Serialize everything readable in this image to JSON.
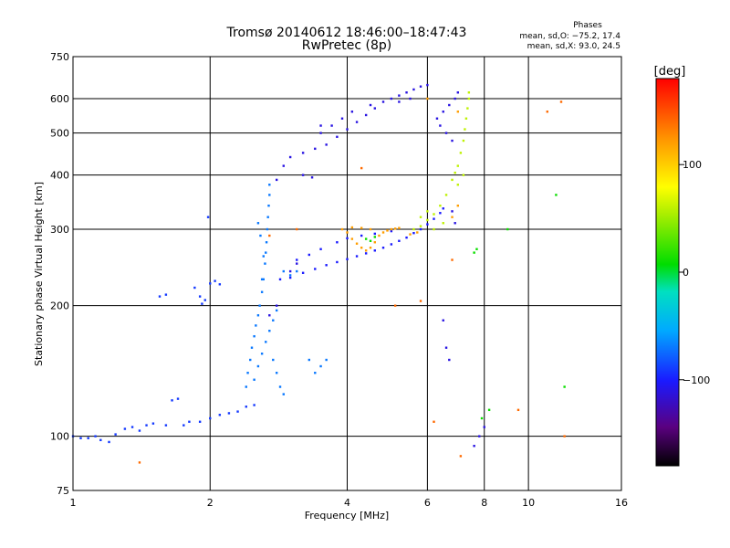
{
  "chart_data": {
    "type": "scatter",
    "title": "Tromsø 20140612 18:46:00–18:47:43",
    "subtitle": "RwPretec (8p)",
    "xlabel": "Frequency [MHz]",
    "ylabel": "Stationary phase Virtual Height [km]",
    "x_scale": "log",
    "y_scale": "log",
    "xlim": [
      1,
      16
    ],
    "ylim": [
      75,
      750
    ],
    "x_ticks": [
      1,
      2,
      4,
      6,
      8,
      10,
      16
    ],
    "x_tick_labels": [
      "1",
      "2",
      "4",
      "6",
      "8",
      "10",
      "16"
    ],
    "y_ticks": [
      75,
      100,
      200,
      300,
      400,
      500,
      600,
      750
    ],
    "y_tick_labels": [
      "75",
      "100",
      "200",
      "300",
      "400",
      "500",
      "600",
      "750"
    ],
    "grid": true,
    "phases_box": {
      "title": "Phases",
      "line1": "mean, sd,O: −75.2, 17.4",
      "line2": "mean, sd,X:  93.0, 24.5"
    },
    "colorbar": {
      "label": "[deg]",
      "range": [
        -180,
        180
      ],
      "ticks": [
        100,
        0,
        -100
      ],
      "tick_labels": [
        "100",
        "0",
        "−100"
      ]
    },
    "series": [
      {
        "color_value": -90,
        "points": [
          [
            1.0,
            100
          ],
          [
            1.04,
            99
          ],
          [
            1.08,
            99
          ],
          [
            1.12,
            100
          ],
          [
            1.15,
            98
          ],
          [
            1.2,
            97
          ],
          [
            1.24,
            101
          ],
          [
            1.3,
            104
          ],
          [
            1.35,
            105
          ],
          [
            1.4,
            103
          ],
          [
            1.45,
            106
          ],
          [
            1.5,
            107
          ],
          [
            1.6,
            106
          ],
          [
            1.65,
            121
          ],
          [
            1.7,
            122
          ],
          [
            1.75,
            106
          ],
          [
            1.8,
            108
          ],
          [
            1.9,
            108
          ],
          [
            2.0,
            110
          ],
          [
            2.1,
            112
          ],
          [
            2.2,
            113
          ],
          [
            2.3,
            114
          ],
          [
            2.4,
            117
          ],
          [
            2.5,
            118
          ],
          [
            1.55,
            210
          ],
          [
            1.6,
            212
          ],
          [
            1.85,
            220
          ],
          [
            1.9,
            210
          ],
          [
            1.92,
            202
          ],
          [
            2.0,
            225
          ],
          [
            2.05,
            228
          ],
          [
            2.1,
            224
          ],
          [
            1.95,
            206
          ],
          [
            1.98,
            320
          ]
        ]
      },
      {
        "color_value": -70,
        "points": [
          [
            2.4,
            130
          ],
          [
            2.42,
            140
          ],
          [
            2.45,
            150
          ],
          [
            2.47,
            160
          ],
          [
            2.5,
            170
          ],
          [
            2.52,
            180
          ],
          [
            2.55,
            190
          ],
          [
            2.57,
            200
          ],
          [
            2.6,
            215
          ],
          [
            2.62,
            230
          ],
          [
            2.64,
            250
          ],
          [
            2.65,
            265
          ],
          [
            2.66,
            280
          ],
          [
            2.67,
            300
          ],
          [
            2.68,
            320
          ],
          [
            2.69,
            340
          ],
          [
            2.7,
            360
          ],
          [
            2.7,
            380
          ],
          [
            2.5,
            135
          ],
          [
            2.55,
            145
          ],
          [
            2.6,
            155
          ],
          [
            2.65,
            165
          ],
          [
            2.7,
            175
          ],
          [
            2.75,
            185
          ],
          [
            2.8,
            195
          ],
          [
            2.75,
            150
          ],
          [
            2.8,
            140
          ],
          [
            2.85,
            130
          ],
          [
            2.9,
            125
          ],
          [
            2.6,
            230
          ],
          [
            2.62,
            260
          ],
          [
            2.58,
            290
          ],
          [
            2.55,
            310
          ],
          [
            2.9,
            240
          ],
          [
            3.0,
            235
          ],
          [
            3.1,
            240
          ],
          [
            3.3,
            150
          ],
          [
            3.4,
            140
          ],
          [
            3.5,
            145
          ],
          [
            3.6,
            150
          ]
        ]
      },
      {
        "color_value": -100,
        "points": [
          [
            2.85,
            230
          ],
          [
            3.0,
            232
          ],
          [
            3.2,
            238
          ],
          [
            3.4,
            243
          ],
          [
            3.6,
            248
          ],
          [
            3.8,
            252
          ],
          [
            4.0,
            256
          ],
          [
            4.2,
            260
          ],
          [
            4.4,
            264
          ],
          [
            4.6,
            268
          ],
          [
            4.8,
            272
          ],
          [
            5.0,
            277
          ],
          [
            5.2,
            282
          ],
          [
            5.4,
            287
          ],
          [
            5.6,
            294
          ],
          [
            5.8,
            300
          ],
          [
            6.0,
            308
          ],
          [
            6.2,
            317
          ],
          [
            6.4,
            327
          ],
          [
            6.5,
            335
          ],
          [
            3.1,
            255
          ],
          [
            3.3,
            262
          ],
          [
            3.5,
            270
          ],
          [
            3.8,
            280
          ],
          [
            4.0,
            286
          ],
          [
            4.3,
            290
          ],
          [
            4.6,
            293
          ],
          [
            5.0,
            297
          ]
        ]
      },
      {
        "color_value": -110,
        "points": [
          [
            2.7,
            190
          ],
          [
            2.8,
            200
          ],
          [
            3.0,
            240
          ],
          [
            3.1,
            250
          ],
          [
            2.8,
            390
          ],
          [
            2.9,
            420
          ],
          [
            3.0,
            440
          ],
          [
            3.2,
            450
          ],
          [
            3.4,
            460
          ],
          [
            3.6,
            470
          ],
          [
            3.8,
            490
          ],
          [
            4.0,
            510
          ],
          [
            4.2,
            530
          ],
          [
            4.4,
            550
          ],
          [
            4.6,
            570
          ],
          [
            4.8,
            590
          ],
          [
            5.0,
            600
          ],
          [
            5.2,
            610
          ],
          [
            5.4,
            620
          ],
          [
            5.6,
            630
          ],
          [
            5.8,
            640
          ],
          [
            6.0,
            645
          ],
          [
            3.5,
            500
          ],
          [
            3.7,
            520
          ],
          [
            3.9,
            540
          ],
          [
            4.1,
            560
          ],
          [
            4.5,
            580
          ],
          [
            5.2,
            590
          ],
          [
            5.5,
            600
          ],
          [
            3.5,
            520
          ],
          [
            3.2,
            400
          ],
          [
            3.35,
            395
          ],
          [
            6.3,
            540
          ],
          [
            6.4,
            520
          ],
          [
            6.6,
            500
          ],
          [
            6.8,
            480
          ],
          [
            6.5,
            560
          ],
          [
            6.7,
            580
          ],
          [
            6.9,
            600
          ],
          [
            7.0,
            620
          ],
          [
            6.8,
            330
          ],
          [
            6.9,
            310
          ],
          [
            6.5,
            185
          ],
          [
            6.6,
            160
          ],
          [
            6.7,
            150
          ],
          [
            7.6,
            95
          ],
          [
            7.8,
            100
          ],
          [
            8.0,
            105
          ]
        ]
      },
      {
        "color_value": 120,
        "points": [
          [
            3.9,
            300
          ],
          [
            4.0,
            295
          ],
          [
            4.1,
            285
          ],
          [
            4.2,
            278
          ],
          [
            4.3,
            272
          ],
          [
            4.4,
            268
          ],
          [
            4.5,
            272
          ],
          [
            4.6,
            280
          ],
          [
            4.7,
            290
          ],
          [
            4.8,
            295
          ],
          [
            4.9,
            298
          ],
          [
            5.0,
            300
          ],
          [
            5.1,
            301
          ],
          [
            5.2,
            302
          ],
          [
            4.5,
            300
          ],
          [
            4.3,
            302
          ],
          [
            4.1,
            303
          ],
          [
            5.7,
            295
          ],
          [
            5.5,
            292
          ],
          [
            6.0,
            600
          ],
          [
            6.8,
            320
          ],
          [
            7.0,
            340
          ],
          [
            7.0,
            560
          ]
        ]
      },
      {
        "color_value": 60,
        "points": [
          [
            5.6,
            300
          ],
          [
            5.8,
            305
          ],
          [
            6.0,
            315
          ],
          [
            6.2,
            325
          ],
          [
            6.4,
            340
          ],
          [
            6.6,
            360
          ],
          [
            6.8,
            390
          ],
          [
            7.0,
            420
          ],
          [
            7.1,
            450
          ],
          [
            7.2,
            480
          ],
          [
            7.25,
            510
          ],
          [
            7.3,
            540
          ],
          [
            7.35,
            570
          ],
          [
            7.4,
            600
          ],
          [
            7.4,
            620
          ],
          [
            7.0,
            380
          ],
          [
            7.2,
            400
          ],
          [
            6.9,
            405
          ],
          [
            6.0,
            330
          ],
          [
            5.8,
            320
          ],
          [
            6.2,
            300
          ],
          [
            6.5,
            310
          ]
        ]
      },
      {
        "color_value": 10,
        "points": [
          [
            4.4,
            285
          ],
          [
            4.5,
            282
          ],
          [
            4.6,
            288
          ],
          [
            7.6,
            265
          ],
          [
            7.7,
            270
          ],
          [
            7.9,
            110
          ],
          [
            8.2,
            115
          ],
          [
            12,
            130
          ],
          [
            9.0,
            300
          ],
          [
            11.5,
            360
          ]
        ]
      },
      {
        "color_value": 140,
        "points": [
          [
            1.4,
            87
          ],
          [
            2.7,
            290
          ],
          [
            3.1,
            300
          ],
          [
            4.3,
            415
          ],
          [
            5.1,
            200
          ],
          [
            6.2,
            108
          ],
          [
            7.1,
            90
          ],
          [
            9.5,
            115
          ],
          [
            11.0,
            560
          ],
          [
            12.0,
            100
          ],
          [
            11.8,
            590
          ],
          [
            6.8,
            255
          ],
          [
            5.8,
            205
          ]
        ]
      }
    ]
  }
}
